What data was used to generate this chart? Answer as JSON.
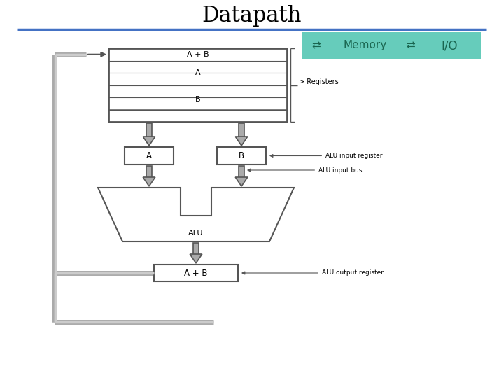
{
  "title": "Datapath",
  "title_fontsize": 22,
  "title_font": "serif",
  "bg_color": "#ffffff",
  "blue_line_color": "#4472c4",
  "teal_box_color": "#66ccbb",
  "teal_box_text_color": "#1a6650",
  "diagram_line_color": "#555555",
  "bus_color": "#aaaaaa",
  "diagram_fill_color": "#ffffff",
  "arrow_color": "#888888",
  "text_color": "#000000",
  "annotation_fontsize": 6.5,
  "label_fontsize": 8,
  "alu_label": "ALU",
  "registers_label": "Registers",
  "memory_label": "Memory",
  "io_label": "I/O",
  "reg_A_label": "A",
  "reg_B_label": "B",
  "alu_input_reg_label": "ALU input register",
  "alu_input_bus_label": "ALU input bus",
  "alu_output_reg_label": "ALU output register",
  "apb_label": "A + B"
}
